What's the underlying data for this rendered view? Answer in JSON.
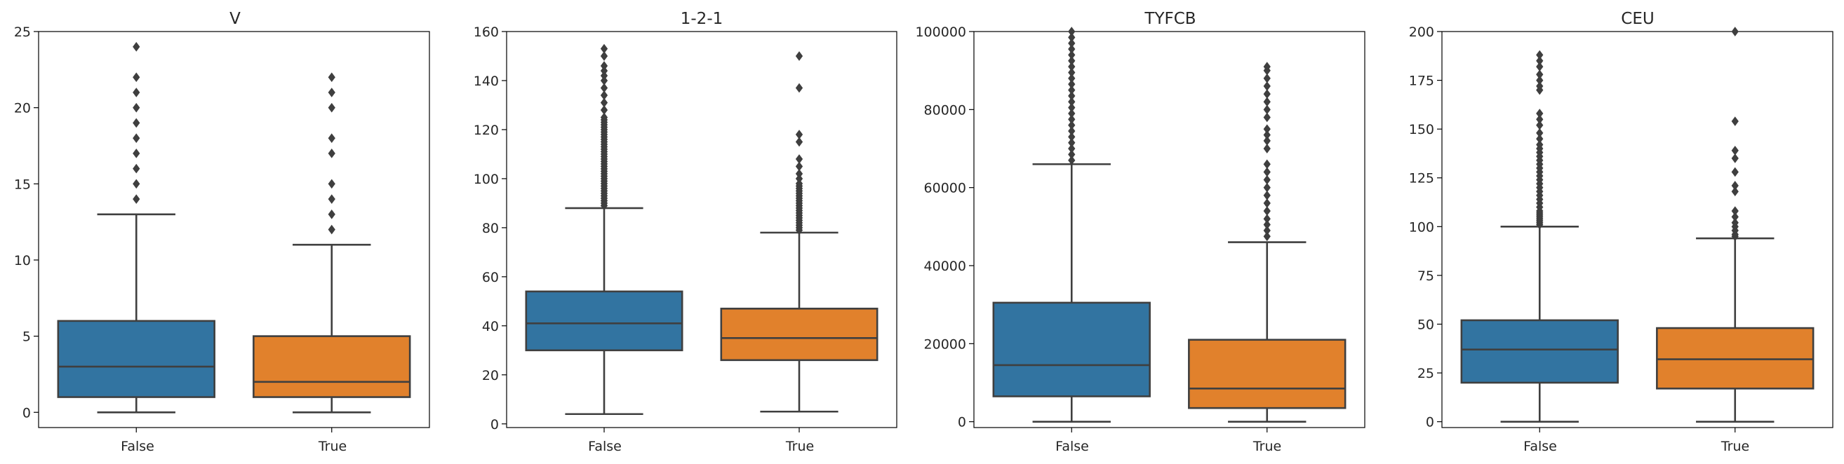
{
  "chart_data": [
    {
      "type": "box",
      "title": "V",
      "categories": [
        "False",
        "True"
      ],
      "ylim": [
        -1,
        25
      ],
      "yticks": [
        0,
        5,
        10,
        15,
        20,
        25
      ],
      "colors": [
        "#3274a1",
        "#e1812c"
      ],
      "boxes": [
        {
          "category": "False",
          "whisker_low": 0,
          "q1": 1,
          "median": 3,
          "q3": 6,
          "whisker_high": 13,
          "outliers": [
            14,
            15,
            16,
            17,
            18,
            19,
            20,
            21,
            22,
            24
          ]
        },
        {
          "category": "True",
          "whisker_low": 0,
          "q1": 1,
          "median": 2,
          "q3": 5,
          "whisker_high": 11,
          "outliers": [
            12,
            13,
            14,
            15,
            17,
            18,
            20,
            21,
            22
          ]
        }
      ]
    },
    {
      "type": "box",
      "title": "1-2-1",
      "categories": [
        "False",
        "True"
      ],
      "ylim": [
        -1.5,
        160
      ],
      "yticks": [
        0,
        20,
        40,
        60,
        80,
        100,
        120,
        140,
        160
      ],
      "colors": [
        "#3274a1",
        "#e1812c"
      ],
      "boxes": [
        {
          "category": "False",
          "whisker_low": 4,
          "q1": 30,
          "median": 41,
          "q3": 54,
          "whisker_high": 88,
          "outliers": [
            89,
            90,
            91,
            92,
            93,
            94,
            95,
            96,
            97,
            98,
            99,
            100,
            101,
            102,
            103,
            104,
            105,
            106,
            107,
            108,
            109,
            110,
            111,
            112,
            113,
            114,
            115,
            116,
            117,
            118,
            119,
            120,
            121,
            122,
            123,
            124,
            125,
            128,
            131,
            134,
            137,
            140,
            142,
            144,
            146,
            150,
            153
          ]
        },
        {
          "category": "True",
          "whisker_low": 5,
          "q1": 26,
          "median": 35,
          "q3": 47,
          "whisker_high": 78,
          "outliers": [
            79,
            80,
            81,
            82,
            83,
            84,
            85,
            86,
            87,
            88,
            89,
            90,
            91,
            92,
            93,
            94,
            95,
            96,
            97,
            98,
            100,
            102,
            105,
            108,
            115,
            118,
            137,
            150
          ]
        }
      ]
    },
    {
      "type": "box",
      "title": "TYFCB",
      "categories": [
        "False",
        "True"
      ],
      "ylim": [
        -1500,
        100000
      ],
      "yticks": [
        0,
        20000,
        40000,
        60000,
        80000,
        100000
      ],
      "colors": [
        "#3274a1",
        "#e1812c"
      ],
      "boxes": [
        {
          "category": "False",
          "whisker_low": 0,
          "q1": 6500,
          "median": 14500,
          "q3": 30500,
          "whisker_high": 66000,
          "outliers": [
            67000,
            68500,
            70000,
            71500,
            73000,
            74500,
            76000,
            77500,
            79000,
            80500,
            82000,
            83500,
            85000,
            86500,
            88000,
            89500,
            91000,
            92500,
            94000,
            95500,
            97000,
            98500,
            100000
          ]
        },
        {
          "category": "True",
          "whisker_low": 0,
          "q1": 3500,
          "median": 8500,
          "q3": 21000,
          "whisker_high": 46000,
          "outliers": [
            47500,
            49000,
            50500,
            52000,
            54000,
            56000,
            58000,
            60000,
            62000,
            64000,
            66000,
            70000,
            72000,
            73500,
            75000,
            78000,
            80000,
            82000,
            84000,
            86000,
            88000,
            90000,
            91000
          ]
        }
      ]
    },
    {
      "type": "box",
      "title": "CEU",
      "categories": [
        "False",
        "True"
      ],
      "ylim": [
        -3,
        200
      ],
      "yticks": [
        0,
        25,
        50,
        75,
        100,
        125,
        150,
        175,
        200
      ],
      "colors": [
        "#3274a1",
        "#e1812c"
      ],
      "boxes": [
        {
          "category": "False",
          "whisker_low": 0,
          "q1": 20,
          "median": 37,
          "q3": 52,
          "whisker_high": 100,
          "outliers": [
            101,
            102,
            103,
            104,
            105,
            106,
            107,
            108,
            110,
            112,
            114,
            116,
            118,
            120,
            122,
            124,
            126,
            128,
            130,
            132,
            134,
            136,
            138,
            140,
            142,
            145,
            148,
            152,
            155,
            158,
            170,
            172,
            175,
            178,
            182,
            185,
            188
          ]
        },
        {
          "category": "True",
          "whisker_low": 0,
          "q1": 17,
          "median": 32,
          "q3": 48,
          "whisker_high": 94,
          "outliers": [
            95,
            96,
            98,
            100,
            102,
            105,
            108,
            118,
            121,
            128,
            135,
            139,
            154,
            200
          ]
        }
      ]
    }
  ]
}
